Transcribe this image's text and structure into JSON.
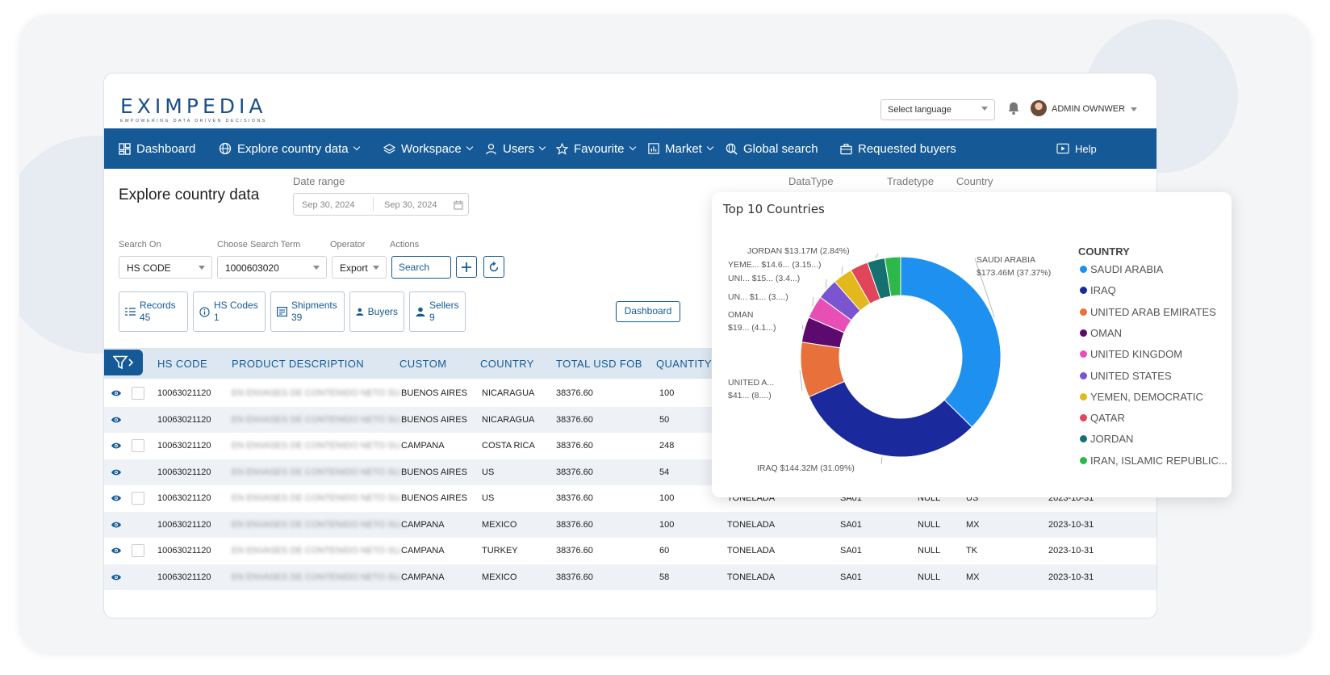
{
  "brand": {
    "logo_text": "EXIMPEDIA",
    "tagline": "EMPOWERING DATA DRIVEN DECISIONS"
  },
  "header": {
    "language_placeholder": "Select language",
    "user_name": "ADMIN OWNWER"
  },
  "nav": {
    "dashboard": "Dashboard",
    "explore": "Explore country data",
    "workspace": "Workspace",
    "users": "Users",
    "favourite": "Favourite",
    "market": "Market",
    "global_search": "Global search",
    "requested_buyers": "Requested buyers",
    "help": "Help"
  },
  "page": {
    "title": "Explore country data",
    "date_range_label": "Date range",
    "date_from": "Sep 30, 2024",
    "date_to": "Sep 30, 2024",
    "datatype_label": "DataType",
    "tradetype_label": "Tradetype",
    "country_label": "Country"
  },
  "search": {
    "search_on_label": "Search On",
    "search_on_value": "HS CODE",
    "term_label": "Choose Search Term",
    "term_value": "1000603020",
    "operator_label": "Operator",
    "operator_value": "Export",
    "actions_label": "Actions",
    "search_button": "Search"
  },
  "stats": {
    "records_label": "Records",
    "records_value": "45",
    "hscodes_label": "HS Codes",
    "hscodes_value": "1",
    "shipments_label": "Shipments",
    "shipments_value": "39",
    "buyers_label": "Buyers",
    "sellers_label": "Sellers",
    "sellers_value": "9",
    "dashboard_button": "Dashboard"
  },
  "table": {
    "columns": [
      "HS CODE",
      "PRODUCT DESCRIPTION",
      "CUSTOM",
      "COUNTRY",
      "TOTAL USD FOB",
      "QUANTITY"
    ],
    "rows": [
      {
        "hs": "10063021120",
        "desc": "EN ENVASES DE CONTENIDO NETO SU...",
        "custom": "BUENOS AIRES",
        "country": "NICARAGUA",
        "fob": "38376.60",
        "qty": "100",
        "unit": "",
        "code": "",
        "null": "",
        "cc": "",
        "date": ""
      },
      {
        "hs": "10063021120",
        "desc": "EN ENVASES DE CONTENIDO NETO SU...",
        "custom": "BUENOS AIRES",
        "country": "NICARAGUA",
        "fob": "38376.60",
        "qty": "50",
        "unit": "",
        "code": "",
        "null": "",
        "cc": "",
        "date": ""
      },
      {
        "hs": "10063021120",
        "desc": "EN ENVASES DE CONTENIDO NETO SU...",
        "custom": "CAMPANA",
        "country": "COSTA RICA",
        "fob": "38376.60",
        "qty": "248",
        "unit": "",
        "code": "",
        "null": "",
        "cc": "",
        "date": ""
      },
      {
        "hs": "10063021120",
        "desc": "EN ENVASES DE CONTENIDO NETO SU...",
        "custom": "BUENOS AIRES",
        "country": "US",
        "fob": "38376.60",
        "qty": "54",
        "unit": "",
        "code": "",
        "null": "",
        "cc": "",
        "date": ""
      },
      {
        "hs": "10063021120",
        "desc": "EN ENVASES DE CONTENIDO NETO SU...",
        "custom": "BUENOS AIRES",
        "country": "US",
        "fob": "38376.60",
        "qty": "100",
        "unit": "TONELADA",
        "code": "SA01",
        "null": "NULL",
        "cc": "US",
        "date": "2023-10-31"
      },
      {
        "hs": "10063021120",
        "desc": "EN ENVASES DE CONTENIDO NETO SU...",
        "custom": "CAMPANA",
        "country": "MEXICO",
        "fob": "38376.60",
        "qty": "100",
        "unit": "TONELADA",
        "code": "SA01",
        "null": "NULL",
        "cc": "MX",
        "date": "2023-10-31"
      },
      {
        "hs": "10063021120",
        "desc": "EN ENVASES DE CONTENIDO NETO SU...",
        "custom": "CAMPANA",
        "country": "TURKEY",
        "fob": "38376.60",
        "qty": "60",
        "unit": "TONELADA",
        "code": "SA01",
        "null": "NULL",
        "cc": "TK",
        "date": "2023-10-31"
      },
      {
        "hs": "10063021120",
        "desc": "EN ENVASES DE CONTENIDO NETO SU...",
        "custom": "CAMPANA",
        "country": "MEXICO",
        "fob": "38376.60",
        "qty": "58",
        "unit": "TONELADA",
        "code": "SA01",
        "null": "NULL",
        "cc": "MX",
        "date": "2023-10-31"
      }
    ]
  },
  "chart_data": {
    "type": "pie",
    "title": "Top 10 Countries",
    "legend_title": "COUNTRY",
    "legend_position": "right",
    "donut": true,
    "slices": [
      {
        "name": "SAUDI ARABIA",
        "value": 37.37,
        "color": "#1e90f0",
        "callout": [
          "SAUDI ARABIA",
          "$173.46M (37.37%)"
        ]
      },
      {
        "name": "IRAQ",
        "value": 31.09,
        "color": "#1a2a9c",
        "callout": [
          "IRAQ $144.32M (31.09%)"
        ]
      },
      {
        "name": "UNITED ARAB EMIRATES",
        "value": 8.9,
        "color": "#e8703a",
        "callout": [
          "UNITED A...",
          "$41... (8....)"
        ]
      },
      {
        "name": "OMAN",
        "value": 4.1,
        "color": "#5c0a6e",
        "callout": [
          "OMAN",
          "$19... (4.1...)"
        ]
      },
      {
        "name": "UNITED KINGDOM",
        "value": 3.7,
        "color": "#e84fb4",
        "callout": [
          "UN... $1... (3....)"
        ]
      },
      {
        "name": "UNITED STATES",
        "value": 3.4,
        "color": "#7b55d0",
        "callout": [
          "UNI... $15... (3.4...)"
        ]
      },
      {
        "name": "YEMEN, DEMOCRATIC",
        "value": 3.15,
        "color": "#e2b81c",
        "callout": [
          "YEME... $14.6... (3.15...)"
        ]
      },
      {
        "name": "QATAR",
        "value": 2.9,
        "color": "#e0455a",
        "callout": [
          ""
        ]
      },
      {
        "name": "JORDAN",
        "value": 2.84,
        "color": "#157070",
        "callout": [
          "JORDAN $13.17M (2.84%)"
        ]
      },
      {
        "name": "IRAN, ISLAMIC REPUBLIC...",
        "value": 2.55,
        "color": "#2fb84a",
        "callout": [
          ""
        ]
      }
    ]
  },
  "colors": {
    "primary": "#155a96",
    "header_bg": "#dce7f1"
  }
}
